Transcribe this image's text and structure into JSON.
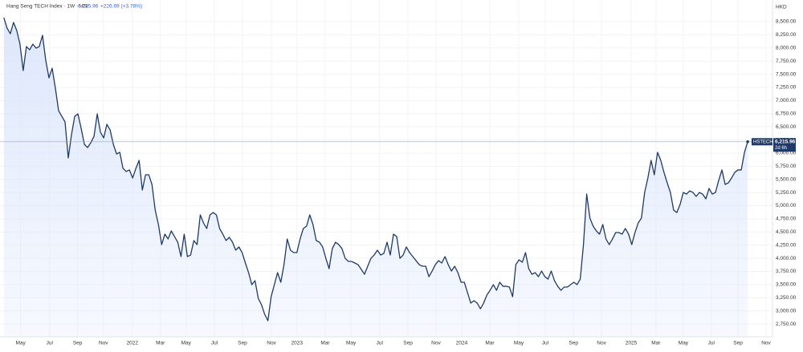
{
  "chart_data": {
    "type": "line",
    "title": "Hang Seng TECH Index · 1W · HSI",
    "header_price": "6,215.96",
    "header_change": "+226.69 (+3.78%)",
    "currency": "HKD",
    "price_tag_name": "HSTECH",
    "price_tag_value": "6,215.96",
    "price_tag_countdown": "2d 6h",
    "color": "#1f3a68",
    "fill_color": "#dce6fb",
    "grid": true,
    "xlim": [
      -1.2,
      238.7
    ],
    "xticks": [
      {
        "value": 5.2,
        "label": "May"
      },
      {
        "value": 14.2,
        "label": "Jul"
      },
      {
        "value": 22.9,
        "label": "Sep"
      },
      {
        "value": 30.9,
        "label": "Nov"
      },
      {
        "value": 39.9,
        "label": "2022"
      },
      {
        "value": 48.6,
        "label": "Mar"
      },
      {
        "value": 56.6,
        "label": "May"
      },
      {
        "value": 65.4,
        "label": "Jul"
      },
      {
        "value": 74.1,
        "label": "Sep"
      },
      {
        "value": 83.1,
        "label": "Nov"
      },
      {
        "value": 91.0,
        "label": "2023"
      },
      {
        "value": 99.8,
        "label": "Mar"
      },
      {
        "value": 107.8,
        "label": "May"
      },
      {
        "value": 116.7,
        "label": "Jul"
      },
      {
        "value": 125.5,
        "label": "Sep"
      },
      {
        "value": 134.2,
        "label": "Nov"
      },
      {
        "value": 142.2,
        "label": "2024"
      },
      {
        "value": 150.9,
        "label": "Mar"
      },
      {
        "value": 159.9,
        "label": "May"
      },
      {
        "value": 168.1,
        "label": "Jul"
      },
      {
        "value": 176.9,
        "label": "Sep"
      },
      {
        "value": 185.6,
        "label": "Nov"
      },
      {
        "value": 194.8,
        "label": "2025"
      },
      {
        "value": 202.5,
        "label": "Mar"
      },
      {
        "value": 211.0,
        "label": "May"
      },
      {
        "value": 219.7,
        "label": "Jul"
      },
      {
        "value": 228.0,
        "label": "Sep"
      },
      {
        "value": 236.7,
        "label": "Nov"
      }
    ],
    "ylim": [
      2507,
      8912
    ],
    "yticks": [
      {
        "value": 2750,
        "label": "2,750.00"
      },
      {
        "value": 3000,
        "label": "3,000.00"
      },
      {
        "value": 3250,
        "label": "3,250.00"
      },
      {
        "value": 3500,
        "label": "3,500.00"
      },
      {
        "value": 3750,
        "label": "3,750.00"
      },
      {
        "value": 4000,
        "label": "4,000.00"
      },
      {
        "value": 4250,
        "label": "4,250.00"
      },
      {
        "value": 4500,
        "label": "4,500.00"
      },
      {
        "value": 4750,
        "label": "4,750.00"
      },
      {
        "value": 5000,
        "label": "5,000.00"
      },
      {
        "value": 5250,
        "label": "5,250.00"
      },
      {
        "value": 5500,
        "label": "5,500.00"
      },
      {
        "value": 5750,
        "label": "5,750.00"
      },
      {
        "value": 6000,
        "label": "6,000.00"
      },
      {
        "value": 6250,
        "label": "6,250.00"
      },
      {
        "value": 6500,
        "label": "6,500.00"
      },
      {
        "value": 6750,
        "label": "6,750.00"
      },
      {
        "value": 7000,
        "label": "7,000.00"
      },
      {
        "value": 7250,
        "label": "7,250.00"
      },
      {
        "value": 7500,
        "label": "7,500.00"
      },
      {
        "value": 7750,
        "label": "7,750.00"
      },
      {
        "value": 8000,
        "label": "8,000.00"
      },
      {
        "value": 8250,
        "label": "8,250.00"
      },
      {
        "value": 8500,
        "label": "8,500.00"
      }
    ],
    "values": [
      8576,
      8378,
      8271,
      8485,
      8332,
      8073,
      7570,
      8027,
      7966,
      8073,
      7997,
      8027,
      8241,
      7768,
      7432,
      7615,
      7234,
      6807,
      6700,
      6594,
      5908,
      6350,
      6700,
      6746,
      6472,
      6167,
      6106,
      6198,
      6320,
      6746,
      6396,
      6289,
      6548,
      6441,
      6167,
      5984,
      6015,
      5710,
      5649,
      5680,
      5527,
      5710,
      5862,
      5298,
      5588,
      5588,
      5404,
      4916,
      4642,
      4260,
      4459,
      4367,
      4520,
      4413,
      4306,
      4032,
      4459,
      4032,
      4062,
      4337,
      4260,
      4825,
      4672,
      4566,
      4825,
      4870,
      4825,
      4566,
      4459,
      4337,
      4398,
      4306,
      4154,
      4215,
      4108,
      3910,
      3727,
      3498,
      3574,
      3239,
      3117,
      2934,
      2812,
      3269,
      3498,
      3727,
      3544,
      3879,
      4367,
      4154,
      4108,
      4108,
      4367,
      4566,
      4611,
      4825,
      4642,
      4337,
      4306,
      4215,
      3999,
      3803,
      4184,
      4306,
      4260,
      4184,
      3999,
      3940,
      3940,
      3910,
      3879,
      3788,
      3696,
      3849,
      3999,
      4062,
      4154,
      4062,
      4093,
      4306,
      4062,
      4459,
      4413,
      3999,
      4062,
      4215,
      4108,
      4032,
      3955,
      3879,
      3849,
      3849,
      3650,
      3757,
      3879,
      3955,
      3910,
      4032,
      3879,
      3757,
      3849,
      3727,
      3544,
      3544,
      3345,
      3147,
      3193,
      3147,
      3040,
      3147,
      3300,
      3391,
      3498,
      3391,
      3544,
      3467,
      3467,
      3452,
      3269,
      3879,
      3971,
      3925,
      4108,
      3803,
      3696,
      3727,
      3650,
      3757,
      3650,
      3604,
      3757,
      3574,
      3467,
      3391,
      3452,
      3452,
      3498,
      3544,
      3498,
      3604,
      4260,
      5221,
      4764,
      4611,
      4520,
      4459,
      4642,
      4367,
      4260,
      4367,
      4489,
      4489,
      4459,
      4566,
      4459,
      4260,
      4489,
      4672,
      4764,
      5252,
      5527,
      5862,
      5588,
      6015,
      5862,
      5634,
      5435,
      5252,
      4916,
      4870,
      5023,
      5252,
      5221,
      5282,
      5252,
      5176,
      5252,
      5221,
      5130,
      5328,
      5221,
      5252,
      5481,
      5680,
      5404,
      5435,
      5527,
      5634,
      5680,
      5680,
      6015,
      6215.96
    ]
  }
}
